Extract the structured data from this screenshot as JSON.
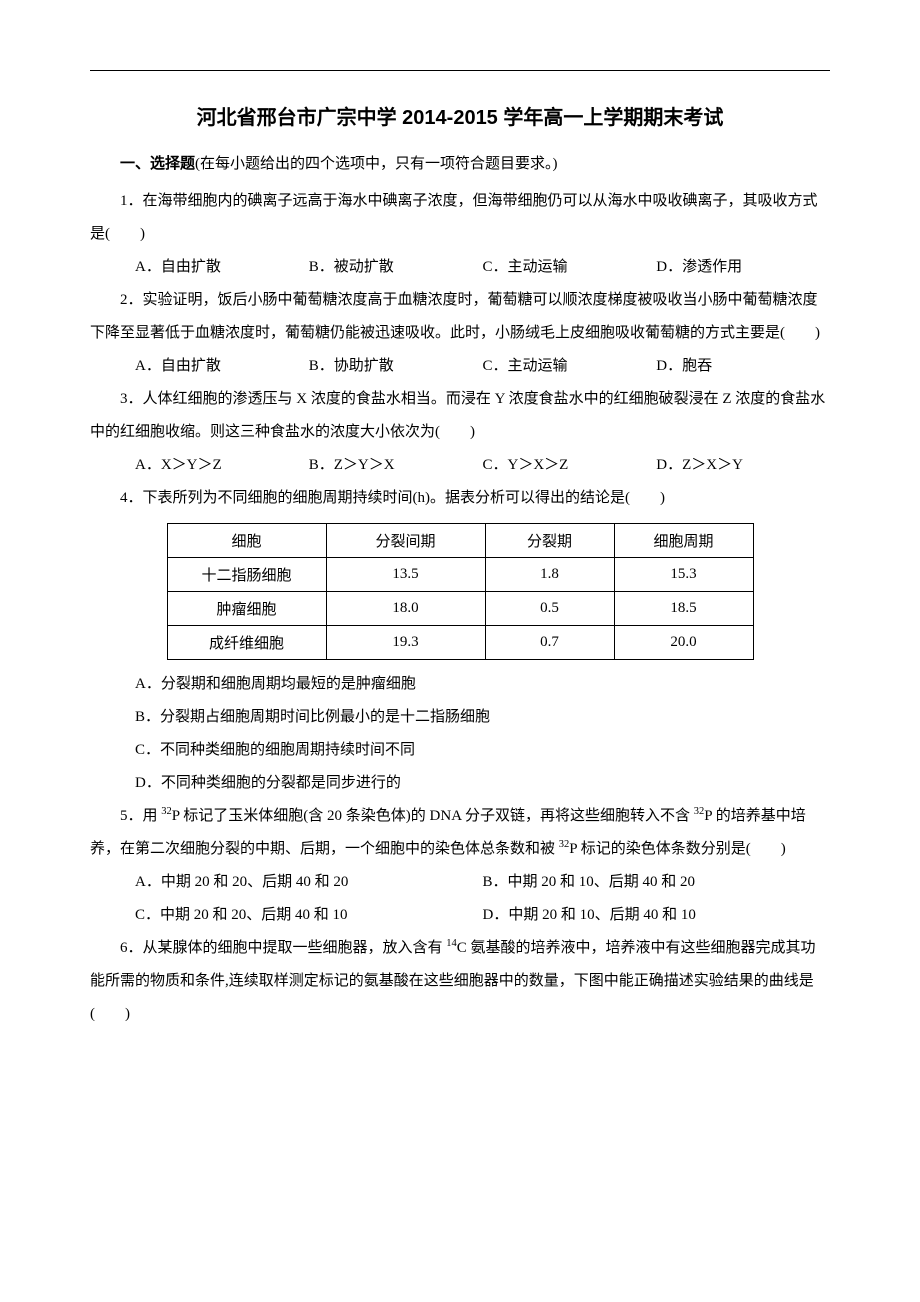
{
  "title": "河北省邢台市广宗中学 2014-2015 学年高一上学期期末考试",
  "section1": {
    "label_bold": "一、选择题",
    "label_rest": "(在每小题给出的四个选项中，只有一项符合题目要求。)"
  },
  "q1": {
    "text": "1．在海带细胞内的碘离子远高于海水中碘离子浓度，但海带细胞仍可以从海水中吸收碘离子，其吸收方式是(　　)",
    "A": "A．自由扩散",
    "B": "B．被动扩散",
    "C": "C．主动运输",
    "D": "D．渗透作用"
  },
  "q2": {
    "text": "2．实验证明，饭后小肠中葡萄糖浓度高于血糖浓度时，葡萄糖可以顺浓度梯度被吸收当小肠中葡萄糖浓度下降至显著低于血糖浓度时，葡萄糖仍能被迅速吸收。此时，小肠绒毛上皮细胞吸收葡萄糖的方式主要是(　　)",
    "A": "A．自由扩散",
    "B": "B．协助扩散",
    "C": "C．主动运输",
    "D": "D．胞吞"
  },
  "q3": {
    "text": "3．人体红细胞的渗透压与 X 浓度的食盐水相当。而浸在 Y 浓度食盐水中的红细胞破裂浸在 Z 浓度的食盐水中的红细胞收缩。则这三种食盐水的浓度大小依次为(　　)",
    "A": "A．X＞Y＞Z",
    "B": "B．Z＞Y＞X",
    "C": "C．Y＞X＞Z",
    "D": "D．Z＞X＞Y"
  },
  "q4": {
    "text": "4．下表所列为不同细胞的细胞周期持续时间(h)。据表分析可以得出的结论是(　　)",
    "table": {
      "header": [
        "细胞",
        "分裂间期",
        "分裂期",
        "细胞周期"
      ],
      "rows": [
        [
          "十二指肠细胞",
          "13.5",
          "1.8",
          "15.3"
        ],
        [
          "肿瘤细胞",
          "18.0",
          "0.5",
          "18.5"
        ],
        [
          "成纤维细胞",
          "19.3",
          "0.7",
          "20.0"
        ]
      ]
    },
    "A": "A．分裂期和细胞周期均最短的是肿瘤细胞",
    "B": "B．分裂期占细胞周期时间比例最小的是十二指肠细胞",
    "C": "C．不同种类细胞的细胞周期持续时间不同",
    "D": "D．不同种类细胞的分裂都是同步进行的"
  },
  "q5": {
    "pre": "5．用 ",
    "sup1": "32",
    "mid1": "P 标记了玉米体细胞(含 20 条染色体)的 DNA 分子双链，再将这些细胞转入不含 ",
    "sup2": "32",
    "mid2": "P 的培养基中培养，在第二次细胞分裂的中期、后期，一个细胞中的染色体总条数和被 ",
    "sup3": "32",
    "mid3": "P 标记的染色体条数分别是(　　)",
    "A": "A．中期 20 和 20、后期 40 和 20",
    "B": "B．中期 20 和 10、后期 40 和 20",
    "C": "C．中期 20 和 20、后期 40 和 10",
    "D": "D．中期 20 和 10、后期 40 和 10"
  },
  "q6": {
    "pre": "6．从某腺体的细胞中提取一些细胞器，放入含有 ",
    "sup1": "14",
    "mid1": "C 氨基酸的培养液中，培养液中有这些细胞器完成其功能所需的物质和条件,连续取样测定标记的氨基酸在这些细胞器中的数量，下图中能正确描述实验结果的曲线是(　　)"
  }
}
